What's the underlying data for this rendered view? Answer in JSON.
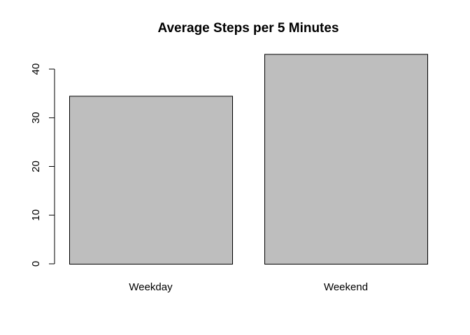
{
  "chart_data": {
    "type": "bar",
    "title": "Average Steps per 5 Minutes",
    "xlabel": "",
    "ylabel": "",
    "categories": [
      "Weekday",
      "Weekend"
    ],
    "values": [
      34.5,
      43.1
    ],
    "ylim": [
      0,
      40
    ],
    "yticks": [
      0,
      10,
      20,
      30,
      40
    ],
    "grid": false,
    "legend": "none",
    "colors": {
      "bar_fill": "#bebebe",
      "bar_stroke": "#000000",
      "axis": "#000000",
      "background": "#ffffff"
    }
  }
}
